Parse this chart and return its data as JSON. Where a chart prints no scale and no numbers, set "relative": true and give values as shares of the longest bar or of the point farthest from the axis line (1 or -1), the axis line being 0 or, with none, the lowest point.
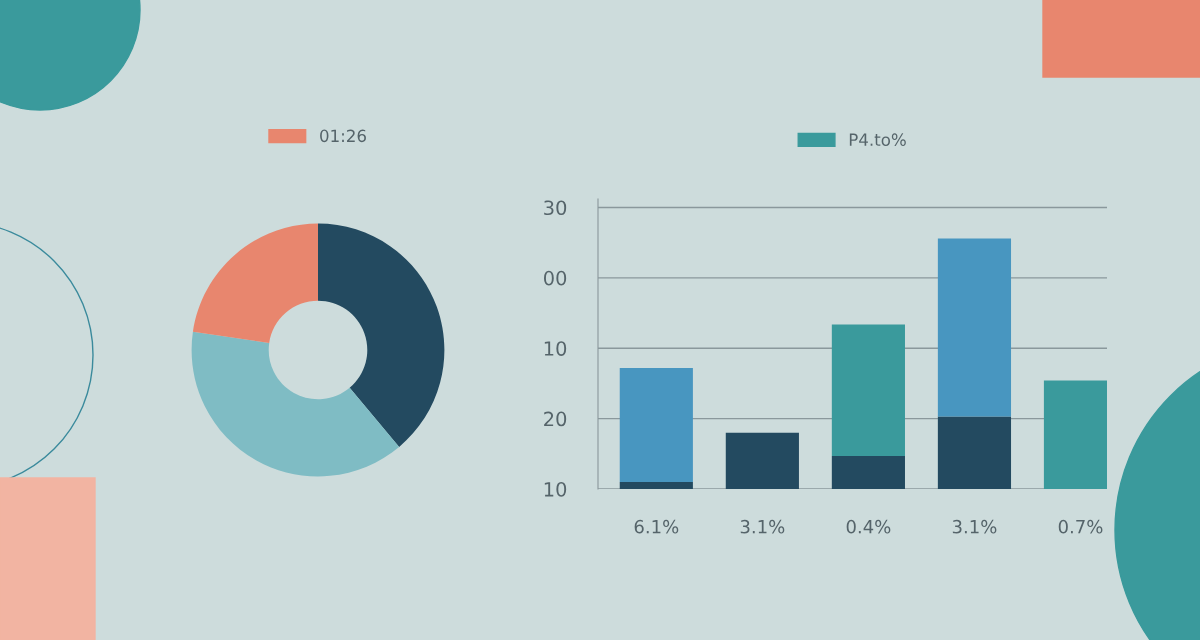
{
  "chart_data": [
    {
      "type": "donut",
      "categories": [
        null,
        null,
        "01:26"
      ],
      "values": [
        38.9,
        38.4,
        22.7
      ],
      "colors": [
        "#234a60",
        "#7fbcc4",
        "#e8866e"
      ],
      "legend": "top"
    },
    {
      "type": "bar",
      "stacked": true,
      "categories": [
        "6.1%",
        "3.1%",
        "0.4%",
        "3.1%",
        "0.7%"
      ],
      "series": [
        {
          "color": "#234a60",
          "values": [
            0.028,
            0.225,
            0.132,
            0.289,
            null
          ]
        },
        {
          "name": "P4.to%",
          "color": "#3a9a9c",
          "colors": [
            "#4896c0",
            null,
            "#3a9a9c",
            "#4896c0",
            "#3a9a9c"
          ],
          "values": [
            0.455,
            null,
            0.525,
            0.711,
            0.433
          ]
        }
      ],
      "relative": true,
      "annotations": [
        "30",
        "00",
        "10",
        "20",
        "10"
      ],
      "grid": "y",
      "legend": "top"
    }
  ]
}
